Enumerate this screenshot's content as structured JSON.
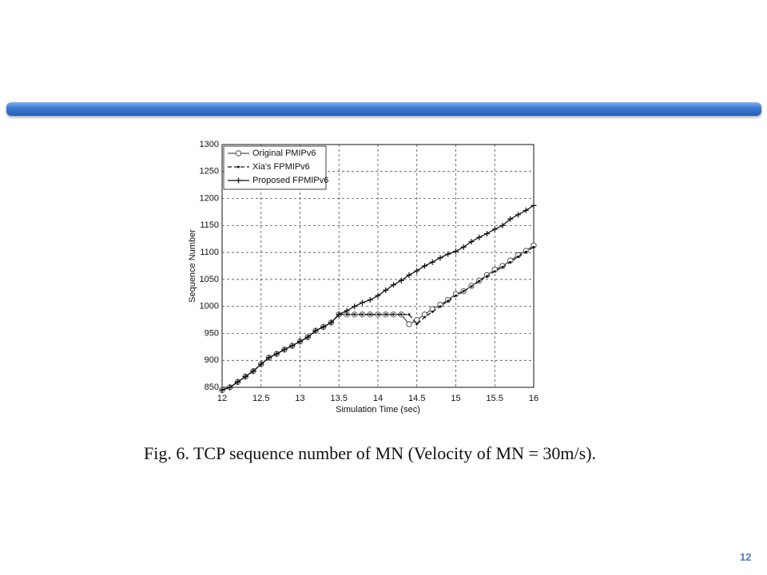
{
  "chart_data": {
    "type": "line",
    "xlabel": "Simulation Time (sec)",
    "ylabel": "Sequence Number",
    "x": [
      12.0,
      12.1,
      12.2,
      12.3,
      12.4,
      12.5,
      12.6,
      12.7,
      12.8,
      12.9,
      13.0,
      13.1,
      13.2,
      13.3,
      13.4,
      13.5,
      13.6,
      13.7,
      13.8,
      13.9,
      14.0,
      14.1,
      14.2,
      14.3,
      14.4,
      14.5,
      14.6,
      14.7,
      14.8,
      14.9,
      15.0,
      15.1,
      15.2,
      15.3,
      15.4,
      15.5,
      15.6,
      15.7,
      15.8,
      15.9,
      16.0
    ],
    "series": [
      {
        "name": "Original PMIPv6",
        "color": "#555555",
        "marker": "circle",
        "dash": false,
        "values": [
          845,
          850,
          860,
          870,
          880,
          893,
          905,
          912,
          920,
          927,
          935,
          943,
          955,
          962,
          970,
          985,
          985,
          985,
          985,
          985,
          985,
          985,
          985,
          985,
          967,
          975,
          985,
          995,
          1003,
          1012,
          1023,
          1028,
          1038,
          1048,
          1058,
          1068,
          1075,
          1085,
          1095,
          1103,
          1113
        ]
      },
      {
        "name": "Xia's FPMIPv6",
        "color": "#111111",
        "marker": "dot",
        "dash": true,
        "values": [
          845,
          850,
          860,
          870,
          880,
          893,
          905,
          912,
          920,
          927,
          935,
          943,
          955,
          962,
          970,
          985,
          985,
          985,
          985,
          985,
          985,
          985,
          985,
          985,
          985,
          967,
          980,
          990,
          1000,
          1010,
          1020,
          1028,
          1037,
          1047,
          1056,
          1065,
          1073,
          1082,
          1092,
          1101,
          1110
        ]
      },
      {
        "name": "Proposed FPMIPv6",
        "color": "#111111",
        "marker": "plus",
        "dash": false,
        "values": [
          845,
          850,
          860,
          870,
          880,
          893,
          905,
          912,
          920,
          927,
          935,
          943,
          955,
          962,
          970,
          985,
          992,
          1000,
          1007,
          1012,
          1020,
          1030,
          1040,
          1048,
          1058,
          1066,
          1075,
          1082,
          1090,
          1097,
          1102,
          1110,
          1120,
          1128,
          1135,
          1143,
          1150,
          1162,
          1170,
          1178,
          1187
        ]
      }
    ],
    "xlim": [
      12,
      16
    ],
    "xticks": [
      12,
      12.5,
      13,
      13.5,
      14,
      14.5,
      15,
      15.5,
      16
    ],
    "ylim": [
      850,
      1300
    ],
    "yticks": [
      850,
      900,
      950,
      1000,
      1050,
      1100,
      1150,
      1200,
      1250,
      1300
    ],
    "grid": true,
    "legend": "upper left"
  },
  "caption": "Fig. 6. TCP sequence number of MN (Velocity of MN = 30m/s).",
  "page_number": "12"
}
